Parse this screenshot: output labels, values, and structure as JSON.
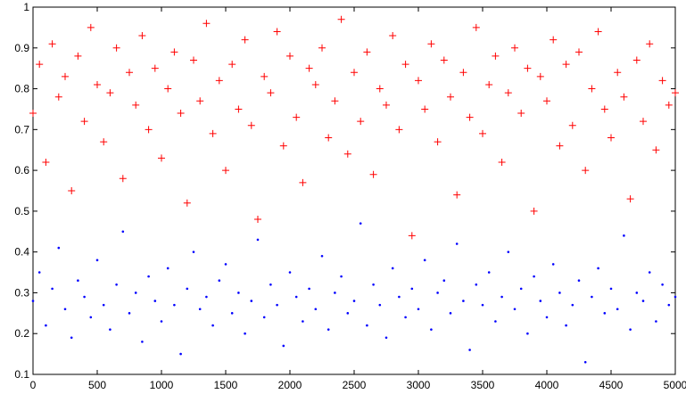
{
  "chart_data": {
    "type": "scatter",
    "x": [
      0,
      50,
      100,
      150,
      200,
      250,
      300,
      350,
      400,
      450,
      500,
      550,
      600,
      650,
      700,
      750,
      800,
      850,
      900,
      950,
      1000,
      1050,
      1100,
      1150,
      1200,
      1250,
      1300,
      1350,
      1400,
      1450,
      1500,
      1550,
      1600,
      1650,
      1700,
      1750,
      1800,
      1850,
      1900,
      1950,
      2000,
      2050,
      2100,
      2150,
      2200,
      2250,
      2300,
      2350,
      2400,
      2450,
      2500,
      2550,
      2600,
      2650,
      2700,
      2750,
      2800,
      2850,
      2900,
      2950,
      3000,
      3050,
      3100,
      3150,
      3200,
      3250,
      3300,
      3350,
      3400,
      3450,
      3500,
      3550,
      3600,
      3650,
      3700,
      3750,
      3800,
      3850,
      3900,
      3950,
      4000,
      4050,
      4100,
      4150,
      4200,
      4250,
      4300,
      4350,
      4400,
      4450,
      4500,
      4550,
      4600,
      4650,
      4700,
      4750,
      4800,
      4850,
      4900,
      4950,
      5000
    ],
    "series": [
      {
        "color": "#ff0000",
        "marker": "plus",
        "values": [
          0.74,
          0.86,
          0.62,
          0.91,
          0.78,
          0.83,
          0.55,
          0.88,
          0.72,
          0.95,
          0.81,
          0.67,
          0.79,
          0.9,
          0.58,
          0.84,
          0.76,
          0.93,
          0.7,
          0.85,
          0.63,
          0.8,
          0.89,
          0.74,
          0.52,
          0.87,
          0.77,
          0.96,
          0.69,
          0.82,
          0.6,
          0.86,
          0.75,
          0.92,
          0.71,
          0.48,
          0.83,
          0.79,
          0.94,
          0.66,
          0.88,
          0.73,
          0.57,
          0.85,
          0.81,
          0.9,
          0.68,
          0.77,
          0.97,
          0.64,
          0.84,
          0.72,
          0.89,
          0.59,
          0.8,
          0.76,
          0.93,
          0.7,
          0.86,
          0.44,
          0.82,
          0.75,
          0.91,
          0.67,
          0.87,
          0.78,
          0.54,
          0.84,
          0.73,
          0.95,
          0.69,
          0.81,
          0.88,
          0.62,
          0.79,
          0.9,
          0.74,
          0.85,
          0.5,
          0.83,
          0.77,
          0.92,
          0.66,
          0.86,
          0.71,
          0.89,
          0.6,
          0.8,
          0.94,
          0.75,
          0.68,
          0.84,
          0.78,
          0.53,
          0.87,
          0.72,
          0.91,
          0.65,
          0.82,
          0.76,
          0.79
        ]
      },
      {
        "color": "#0000ff",
        "marker": "dot",
        "values": [
          0.28,
          0.35,
          0.22,
          0.31,
          0.41,
          0.26,
          0.19,
          0.33,
          0.29,
          0.24,
          0.38,
          0.27,
          0.21,
          0.32,
          0.45,
          0.25,
          0.3,
          0.18,
          0.34,
          0.28,
          0.23,
          0.36,
          0.27,
          0.15,
          0.31,
          0.4,
          0.26,
          0.29,
          0.22,
          0.33,
          0.37,
          0.25,
          0.3,
          0.2,
          0.28,
          0.43,
          0.24,
          0.32,
          0.27,
          0.17,
          0.35,
          0.29,
          0.23,
          0.31,
          0.26,
          0.39,
          0.21,
          0.3,
          0.34,
          0.25,
          0.28,
          0.47,
          0.22,
          0.32,
          0.27,
          0.19,
          0.36,
          0.29,
          0.24,
          0.31,
          0.26,
          0.38,
          0.21,
          0.3,
          0.33,
          0.25,
          0.42,
          0.28,
          0.16,
          0.32,
          0.27,
          0.35,
          0.23,
          0.29,
          0.4,
          0.26,
          0.31,
          0.2,
          0.34,
          0.28,
          0.24,
          0.37,
          0.3,
          0.22,
          0.27,
          0.33,
          0.13,
          0.29,
          0.36,
          0.25,
          0.31,
          0.26,
          0.44,
          0.21,
          0.3,
          0.28,
          0.35,
          0.23,
          0.32,
          0.27,
          0.29
        ]
      }
    ],
    "xlim": [
      0,
      5000
    ],
    "xticks": [
      0,
      500,
      1000,
      1500,
      2000,
      2500,
      3000,
      3500,
      4000,
      4500,
      5000
    ],
    "ylim": [
      0.1,
      1
    ],
    "yticks": [
      0.1,
      0.2,
      0.3,
      0.4,
      0.5,
      0.6,
      0.7,
      0.8,
      0.9,
      1
    ],
    "grid": false
  }
}
